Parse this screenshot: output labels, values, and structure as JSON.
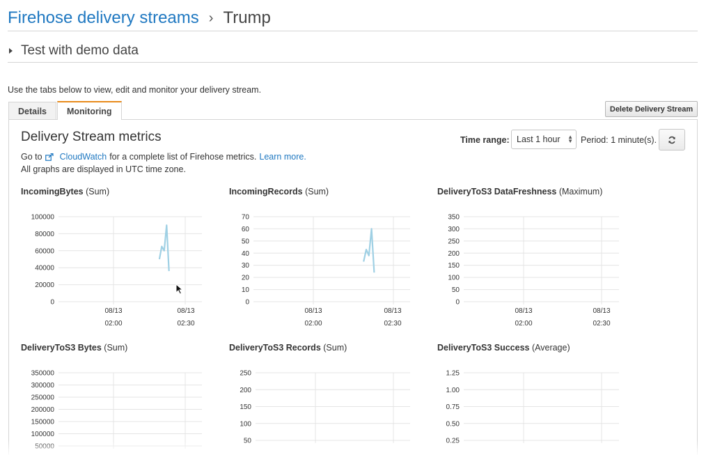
{
  "breadcrumb": {
    "parent": "Firehose delivery streams",
    "separator": "›",
    "current": "Trump"
  },
  "demo_section": {
    "label": "Test with demo data"
  },
  "intro_text": "Use the tabs below to view, edit and monitor your delivery stream.",
  "tabs": [
    {
      "label": "Details",
      "active": false
    },
    {
      "label": "Monitoring",
      "active": true
    }
  ],
  "delete_button": "Delete Delivery Stream",
  "metrics": {
    "title": "Delivery Stream metrics",
    "time_range_label": "Time range:",
    "time_range_value": "Last 1 hour",
    "period_text": "Period:  1  minute(s).",
    "goto_prefix": "Go to",
    "cloudwatch_link": "CloudWatch",
    "goto_suffix": "for a complete list of Firehose metrics.",
    "learn_more": "Learn more.",
    "utc_note": "All graphs are displayed in UTC time zone."
  },
  "colors": {
    "link": "#1f78c1",
    "tab_accent": "#e88a1a",
    "series": "#9fd0e4"
  },
  "chart_data": [
    {
      "type": "line",
      "title": "IncomingBytes",
      "stat": "(Sum)",
      "yticks": [
        "100000",
        "80000",
        "60000",
        "40000",
        "20000",
        "0"
      ],
      "ylim": [
        0,
        100000
      ],
      "xticks": [
        {
          "date": "08/13",
          "time": "02:00"
        },
        {
          "date": "08/13",
          "time": "02:30"
        }
      ],
      "series": [
        {
          "x": [
            "02:19",
            "02:20",
            "02:21",
            "02:22",
            "02:23"
          ],
          "y": [
            50000,
            65000,
            60000,
            90000,
            36000
          ]
        }
      ]
    },
    {
      "type": "line",
      "title": "IncomingRecords",
      "stat": "(Sum)",
      "yticks": [
        "70",
        "60",
        "50",
        "40",
        "30",
        "20",
        "10",
        "0"
      ],
      "ylim": [
        0,
        70
      ],
      "xticks": [
        {
          "date": "08/13",
          "time": "02:00"
        },
        {
          "date": "08/13",
          "time": "02:30"
        }
      ],
      "series": [
        {
          "x": [
            "02:19",
            "02:20",
            "02:21",
            "02:22",
            "02:23"
          ],
          "y": [
            33,
            43,
            38,
            60,
            24
          ]
        }
      ]
    },
    {
      "type": "line",
      "title": "DeliveryToS3 DataFreshness",
      "stat": "(Maximum)",
      "yticks": [
        "350",
        "300",
        "250",
        "200",
        "150",
        "100",
        "50",
        "0"
      ],
      "ylim": [
        0,
        350
      ],
      "xticks": [
        {
          "date": "08/13",
          "time": "02:00"
        },
        {
          "date": "08/13",
          "time": "02:30"
        }
      ],
      "series": []
    },
    {
      "type": "line",
      "title": "DeliveryToS3 Bytes",
      "stat": "(Sum)",
      "yticks": [
        "350000",
        "300000",
        "250000",
        "200000",
        "150000",
        "100000",
        "50000"
      ],
      "ylim": [
        0,
        350000
      ],
      "xticks": [],
      "series": []
    },
    {
      "type": "line",
      "title": "DeliveryToS3 Records",
      "stat": "(Sum)",
      "yticks": [
        "250",
        "200",
        "150",
        "100",
        "50"
      ],
      "ylim": [
        0,
        250
      ],
      "xticks": [],
      "series": []
    },
    {
      "type": "line",
      "title": "DeliveryToS3 Success",
      "stat": "(Average)",
      "yticks": [
        "1.25",
        "1.00",
        "0.75",
        "0.50",
        "0.25"
      ],
      "ylim": [
        0,
        1.25
      ],
      "xticks": [],
      "series": []
    }
  ]
}
